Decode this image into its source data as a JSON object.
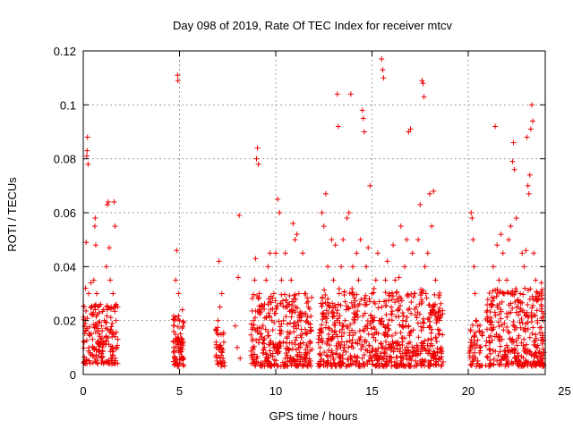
{
  "chart_data": {
    "type": "scatter",
    "title": "Day 098 of 2019, Rate Of TEC Index for receiver mtcv",
    "xlabel": "GPS time / hours",
    "ylabel": "ROTI / TECUs",
    "xlim": [
      0,
      24
    ],
    "ylim": [
      0,
      0.12
    ],
    "xticks": [
      0,
      5,
      10,
      15,
      20,
      25
    ],
    "yticks": [
      0,
      0.02,
      0.04,
      0.06,
      0.08,
      0.1,
      0.12
    ],
    "xtick_labels": [
      "0",
      "5",
      "10",
      "15",
      "20",
      "25"
    ],
    "ytick_labels": [
      "0",
      "0.02",
      "0.04",
      "0.06",
      "0.08",
      "0.1",
      "0.12"
    ],
    "grid": true,
    "marker": "+",
    "color": "#ee0000",
    "series": [
      {
        "name": "mtcv",
        "points": [
          [
            0.05,
            0.012
          ],
          [
            0.1,
            0.02
          ],
          [
            0.12,
            0.032
          ],
          [
            0.15,
            0.049
          ],
          [
            0.18,
            0.081
          ],
          [
            0.2,
            0.083
          ],
          [
            0.22,
            0.088
          ],
          [
            0.25,
            0.078
          ],
          [
            0.28,
            0.03
          ],
          [
            0.3,
            0.015
          ],
          [
            0.35,
            0.008
          ],
          [
            0.4,
            0.034
          ],
          [
            0.45,
            0.025
          ],
          [
            0.5,
            0.01
          ],
          [
            0.55,
            0.035
          ],
          [
            0.6,
            0.055
          ],
          [
            0.62,
            0.058
          ],
          [
            0.65,
            0.048
          ],
          [
            0.7,
            0.03
          ],
          [
            0.75,
            0.012
          ],
          [
            0.8,
            0.009
          ],
          [
            0.85,
            0.015
          ],
          [
            0.9,
            0.026
          ],
          [
            0.95,
            0.018
          ],
          [
            1.0,
            0.01
          ],
          [
            1.05,
            0.012
          ],
          [
            1.1,
            0.02
          ],
          [
            1.2,
            0.04
          ],
          [
            1.25,
            0.063
          ],
          [
            1.3,
            0.064
          ],
          [
            1.35,
            0.047
          ],
          [
            1.4,
            0.035
          ],
          [
            1.45,
            0.025
          ],
          [
            1.5,
            0.015
          ],
          [
            1.55,
            0.03
          ],
          [
            1.6,
            0.064
          ],
          [
            1.65,
            0.055
          ],
          [
            1.7,
            0.02
          ],
          [
            1.75,
            0.01
          ],
          [
            0.3,
            0.005
          ],
          [
            0.6,
            0.006
          ],
          [
            1.0,
            0.005
          ],
          [
            1.5,
            0.006
          ],
          [
            4.7,
            0.01
          ],
          [
            4.75,
            0.02
          ],
          [
            4.8,
            0.035
          ],
          [
            4.85,
            0.046
          ],
          [
            4.9,
            0.111
          ],
          [
            4.92,
            0.109
          ],
          [
            4.95,
            0.03
          ],
          [
            5.0,
            0.02
          ],
          [
            5.05,
            0.015
          ],
          [
            5.1,
            0.01
          ],
          [
            5.15,
            0.024
          ],
          [
            5.2,
            0.012
          ],
          [
            4.8,
            0.005
          ],
          [
            5.0,
            0.004
          ],
          [
            5.2,
            0.006
          ],
          [
            6.9,
            0.01
          ],
          [
            7.0,
            0.02
          ],
          [
            7.05,
            0.042
          ],
          [
            7.1,
            0.025
          ],
          [
            7.15,
            0.015
          ],
          [
            7.2,
            0.03
          ],
          [
            7.3,
            0.012
          ],
          [
            7.0,
            0.004
          ],
          [
            7.25,
            0.005
          ],
          [
            7.9,
            0.018
          ],
          [
            8.0,
            0.01
          ],
          [
            8.05,
            0.036
          ],
          [
            8.1,
            0.059
          ],
          [
            8.15,
            0.006
          ],
          [
            8.8,
            0.01
          ],
          [
            8.85,
            0.02
          ],
          [
            8.9,
            0.035
          ],
          [
            8.95,
            0.043
          ],
          [
            9.0,
            0.08
          ],
          [
            9.05,
            0.084
          ],
          [
            9.1,
            0.078
          ],
          [
            9.15,
            0.03
          ],
          [
            9.2,
            0.015
          ],
          [
            9.3,
            0.025
          ],
          [
            9.4,
            0.01
          ],
          [
            9.5,
            0.035
          ],
          [
            9.6,
            0.04
          ],
          [
            9.7,
            0.045
          ],
          [
            9.8,
            0.02
          ],
          [
            9.9,
            0.03
          ],
          [
            10.0,
            0.045
          ],
          [
            10.1,
            0.065
          ],
          [
            10.2,
            0.06
          ],
          [
            10.3,
            0.035
          ],
          [
            10.4,
            0.02
          ],
          [
            10.5,
            0.045
          ],
          [
            10.6,
            0.025
          ],
          [
            10.7,
            0.015
          ],
          [
            10.8,
            0.035
          ],
          [
            10.9,
            0.056
          ],
          [
            11.0,
            0.05
          ],
          [
            11.1,
            0.052
          ],
          [
            11.2,
            0.03
          ],
          [
            11.3,
            0.02
          ],
          [
            11.4,
            0.045
          ],
          [
            11.5,
            0.03
          ],
          [
            11.6,
            0.015
          ],
          [
            11.7,
            0.025
          ],
          [
            11.8,
            0.012
          ],
          [
            9.0,
            0.006
          ],
          [
            9.5,
            0.005
          ],
          [
            10.0,
            0.004
          ],
          [
            10.5,
            0.006
          ],
          [
            11.0,
            0.005
          ],
          [
            11.5,
            0.006
          ],
          [
            12.3,
            0.01
          ],
          [
            12.4,
            0.06
          ],
          [
            12.5,
            0.055
          ],
          [
            12.6,
            0.067
          ],
          [
            12.7,
            0.04
          ],
          [
            12.8,
            0.025
          ],
          [
            12.9,
            0.05
          ],
          [
            13.0,
            0.035
          ],
          [
            13.1,
            0.048
          ],
          [
            13.2,
            0.104
          ],
          [
            13.25,
            0.092
          ],
          [
            13.3,
            0.03
          ],
          [
            13.4,
            0.04
          ],
          [
            13.5,
            0.05
          ],
          [
            13.6,
            0.02
          ],
          [
            13.7,
            0.058
          ],
          [
            13.8,
            0.06
          ],
          [
            13.9,
            0.104
          ],
          [
            14.0,
            0.04
          ],
          [
            14.1,
            0.025
          ],
          [
            14.2,
            0.045
          ],
          [
            14.3,
            0.035
          ],
          [
            14.4,
            0.05
          ],
          [
            14.5,
            0.098
          ],
          [
            14.55,
            0.095
          ],
          [
            14.6,
            0.09
          ],
          [
            14.7,
            0.04
          ],
          [
            14.8,
            0.047
          ],
          [
            14.9,
            0.07
          ],
          [
            15.0,
            0.03
          ],
          [
            15.1,
            0.02
          ],
          [
            15.2,
            0.035
          ],
          [
            15.3,
            0.045
          ],
          [
            15.4,
            0.02
          ],
          [
            15.5,
            0.117
          ],
          [
            15.55,
            0.113
          ],
          [
            15.6,
            0.11
          ],
          [
            15.7,
            0.035
          ],
          [
            15.8,
            0.042
          ],
          [
            15.9,
            0.03
          ],
          [
            16.0,
            0.025
          ],
          [
            16.1,
            0.048
          ],
          [
            16.2,
            0.035
          ],
          [
            16.3,
            0.028
          ],
          [
            16.4,
            0.036
          ],
          [
            16.5,
            0.055
          ],
          [
            16.6,
            0.02
          ],
          [
            16.7,
            0.04
          ],
          [
            16.8,
            0.05
          ],
          [
            16.9,
            0.09
          ],
          [
            17.0,
            0.091
          ],
          [
            17.1,
            0.045
          ],
          [
            17.2,
            0.03
          ],
          [
            17.3,
            0.025
          ],
          [
            17.4,
            0.05
          ],
          [
            17.5,
            0.063
          ],
          [
            17.6,
            0.109
          ],
          [
            17.65,
            0.108
          ],
          [
            17.7,
            0.103
          ],
          [
            17.75,
            0.04
          ],
          [
            17.8,
            0.03
          ],
          [
            17.9,
            0.045
          ],
          [
            18.0,
            0.067
          ],
          [
            18.1,
            0.055
          ],
          [
            18.2,
            0.068
          ],
          [
            18.3,
            0.035
          ],
          [
            18.4,
            0.02
          ],
          [
            18.5,
            0.015
          ],
          [
            18.6,
            0.01
          ],
          [
            12.5,
            0.005
          ],
          [
            13.0,
            0.006
          ],
          [
            13.5,
            0.004
          ],
          [
            14.0,
            0.005
          ],
          [
            14.5,
            0.006
          ],
          [
            15.0,
            0.005
          ],
          [
            15.5,
            0.004
          ],
          [
            16.0,
            0.006
          ],
          [
            16.5,
            0.005
          ],
          [
            17.0,
            0.006
          ],
          [
            17.5,
            0.005
          ],
          [
            18.0,
            0.004
          ],
          [
            18.5,
            0.006
          ],
          [
            20.1,
            0.01
          ],
          [
            20.15,
            0.06
          ],
          [
            20.2,
            0.058
          ],
          [
            20.25,
            0.05
          ],
          [
            20.3,
            0.04
          ],
          [
            20.35,
            0.03
          ],
          [
            20.4,
            0.02
          ],
          [
            20.5,
            0.018
          ],
          [
            20.6,
            0.01
          ],
          [
            20.7,
            0.015
          ],
          [
            20.2,
            0.004
          ],
          [
            20.5,
            0.005
          ],
          [
            21.0,
            0.02
          ],
          [
            21.1,
            0.012
          ],
          [
            21.2,
            0.025
          ],
          [
            21.3,
            0.04
          ],
          [
            21.4,
            0.092
          ],
          [
            21.5,
            0.048
          ],
          [
            21.6,
            0.035
          ],
          [
            21.7,
            0.052
          ],
          [
            21.8,
            0.045
          ],
          [
            21.9,
            0.03
          ],
          [
            22.0,
            0.035
          ],
          [
            22.1,
            0.05
          ],
          [
            22.2,
            0.055
          ],
          [
            22.3,
            0.079
          ],
          [
            22.35,
            0.086
          ],
          [
            22.4,
            0.076
          ],
          [
            22.5,
            0.058
          ],
          [
            22.6,
            0.025
          ],
          [
            22.7,
            0.03
          ],
          [
            22.8,
            0.045
          ],
          [
            22.9,
            0.04
          ],
          [
            23.0,
            0.046
          ],
          [
            23.05,
            0.088
          ],
          [
            23.1,
            0.07
          ],
          [
            23.15,
            0.067
          ],
          [
            23.2,
            0.074
          ],
          [
            23.25,
            0.091
          ],
          [
            23.3,
            0.1
          ],
          [
            23.35,
            0.094
          ],
          [
            23.4,
            0.045
          ],
          [
            23.5,
            0.035
          ],
          [
            23.6,
            0.02
          ],
          [
            23.7,
            0.03
          ],
          [
            23.8,
            0.034
          ],
          [
            23.9,
            0.02
          ],
          [
            21.5,
            0.005
          ],
          [
            22.0,
            0.004
          ],
          [
            22.5,
            0.006
          ],
          [
            23.0,
            0.005
          ],
          [
            23.5,
            0.004
          ],
          [
            23.9,
            0.006
          ]
        ],
        "bands": [
          {
            "x0": 0.0,
            "x1": 1.8,
            "y0": 0.004,
            "y1": 0.026,
            "n": 170
          },
          {
            "x0": 4.65,
            "x1": 5.25,
            "y0": 0.003,
            "y1": 0.022,
            "n": 70
          },
          {
            "x0": 6.85,
            "x1": 7.35,
            "y0": 0.003,
            "y1": 0.018,
            "n": 35
          },
          {
            "x0": 8.7,
            "x1": 11.9,
            "y0": 0.003,
            "y1": 0.03,
            "n": 330
          },
          {
            "x0": 12.2,
            "x1": 18.7,
            "y0": 0.003,
            "y1": 0.032,
            "n": 680
          },
          {
            "x0": 20.05,
            "x1": 20.75,
            "y0": 0.003,
            "y1": 0.02,
            "n": 45
          },
          {
            "x0": 20.9,
            "x1": 23.95,
            "y0": 0.003,
            "y1": 0.032,
            "n": 330
          }
        ]
      }
    ]
  }
}
